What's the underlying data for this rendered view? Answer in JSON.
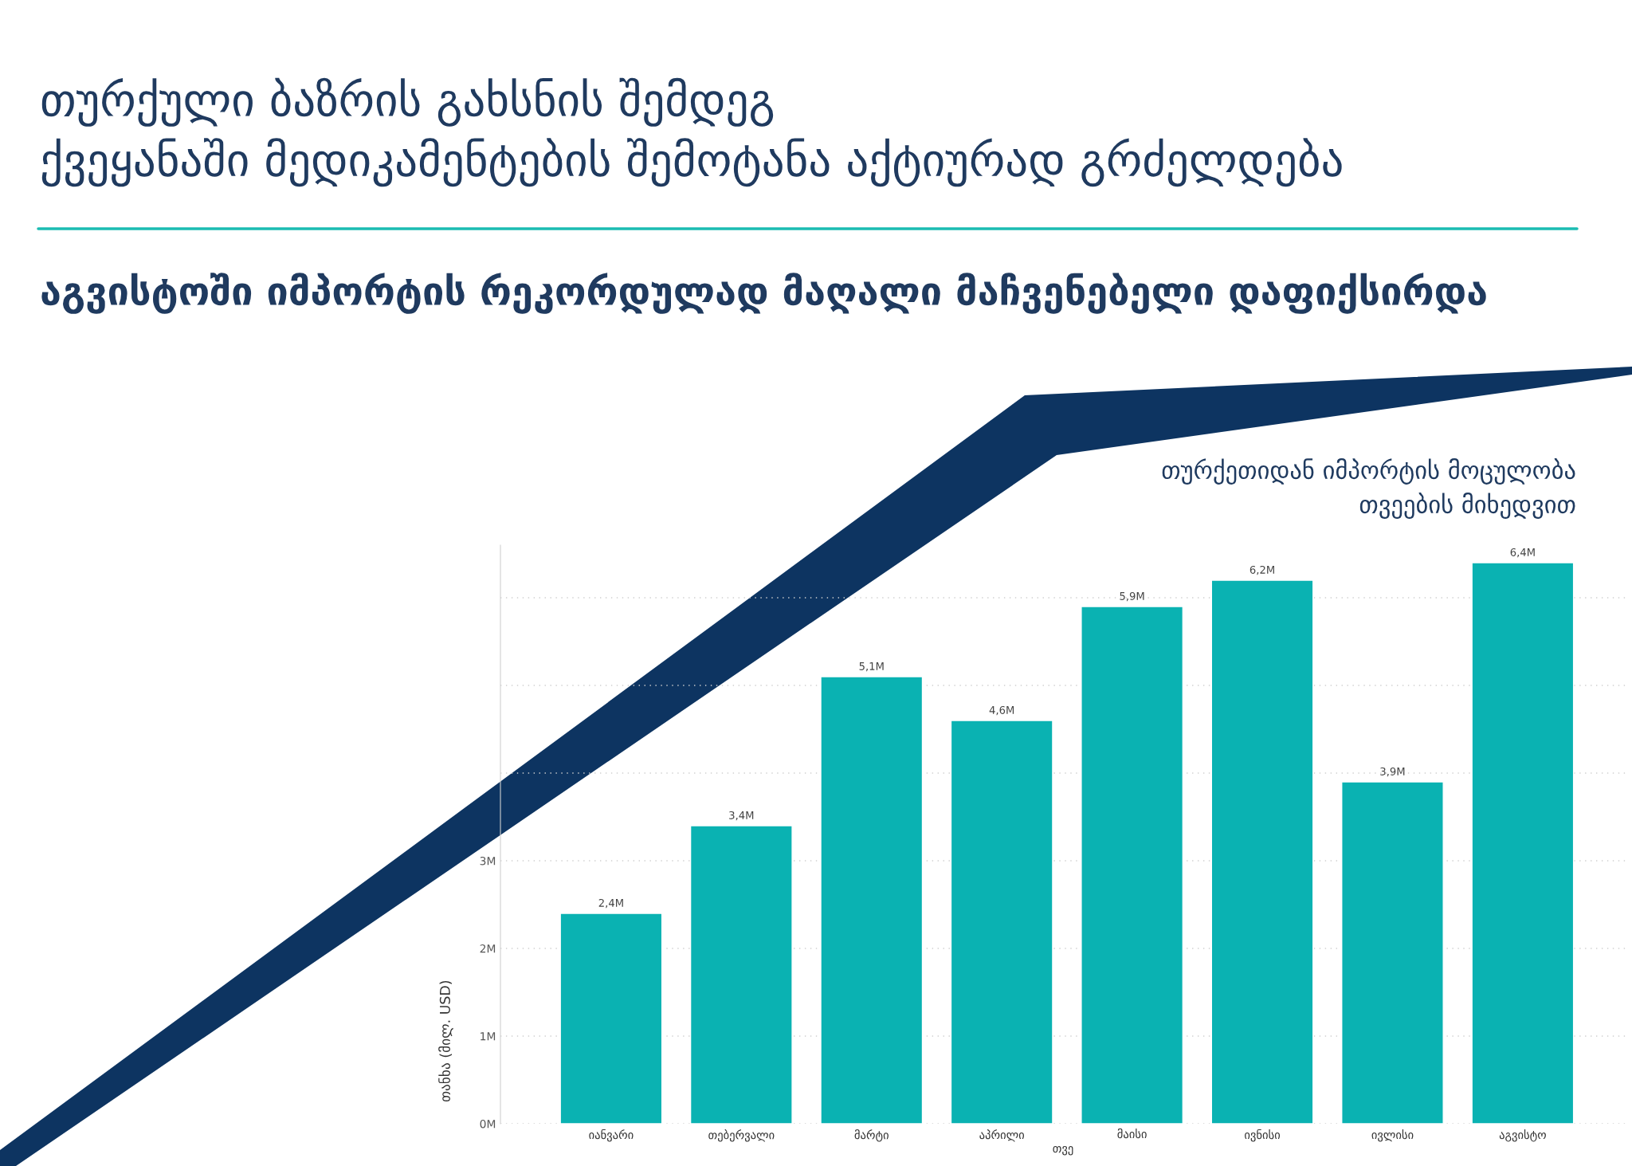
{
  "chart_data": {
    "type": "bar",
    "title": "თურქული ბაზრის გახსნის შემდეგ\nქვეყანაში მედიკამენტების შემოტანა აქტიურად გრძელდება",
    "subtitle": "აგვისტოში იმპორტის რეკორდულად მაღალი მაჩვენებელი დაფიქსირდა",
    "annotations": [
      "თურქეთიდან იმპორტის მოცულობა\nთვეების მიხედვით"
    ],
    "xlabel": "თვე",
    "ylabel": "თანხა (მილ. USD)",
    "categories": [
      "იანვარი",
      "თებერვალი",
      "მარტი",
      "აპრილი",
      "მაისი",
      "ივნისი",
      "ივლისი",
      "აგვისტო"
    ],
    "values": [
      2.4,
      3.4,
      5.1,
      4.6,
      5.9,
      6.2,
      3.9,
      6.4
    ],
    "value_labels": [
      "2,4M",
      "3,4M",
      "5,1M",
      "4,6M",
      "5,9M",
      "6,2M",
      "3,9M",
      "6,4M"
    ],
    "color": "#0ab2b2",
    "ylim": [
      0,
      6.6
    ],
    "yticks": [
      {
        "value": 0,
        "label": "0M"
      },
      {
        "value": 1,
        "label": "1M"
      },
      {
        "value": 2,
        "label": "2M"
      },
      {
        "value": 3,
        "label": "3M"
      },
      {
        "value": 4,
        "label": null
      },
      {
        "value": 5,
        "label": null
      },
      {
        "value": 6,
        "label": null
      }
    ],
    "grid": "y"
  }
}
